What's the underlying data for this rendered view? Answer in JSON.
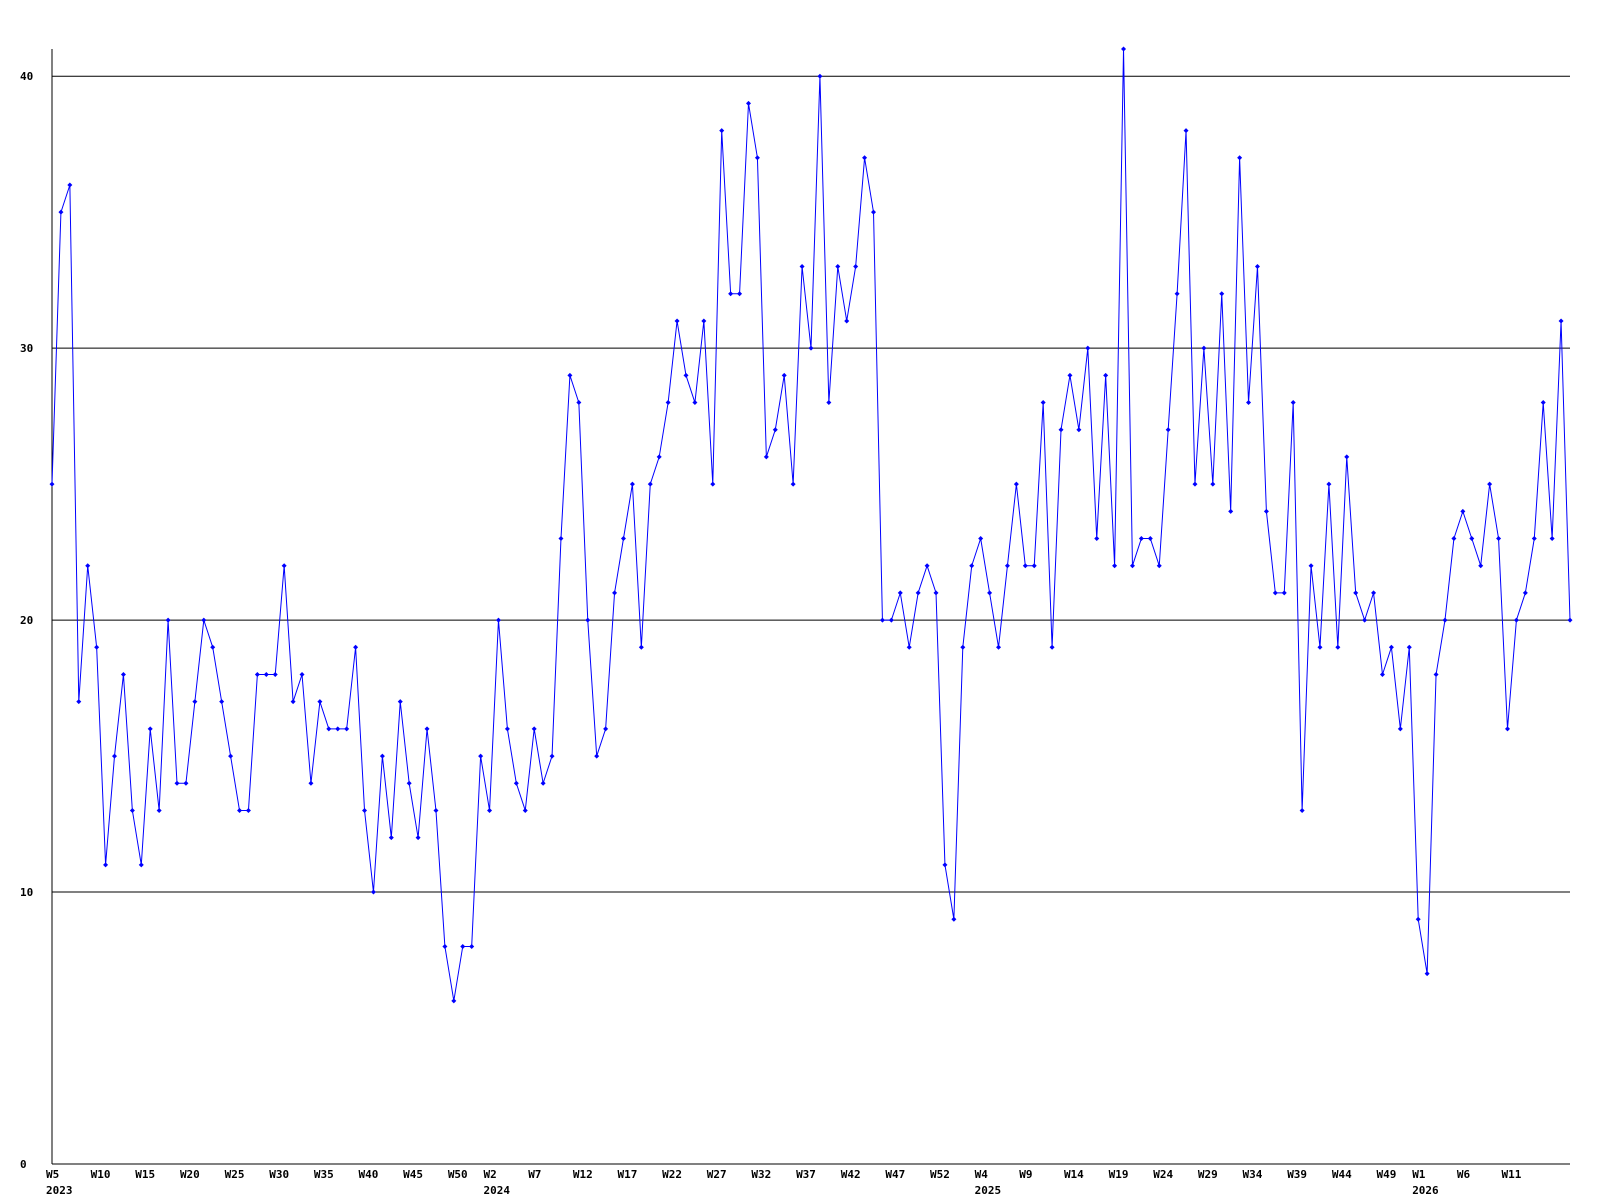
{
  "chart_data": {
    "type": "line",
    "title": "",
    "xlabel": "",
    "ylabel": "",
    "ylim": [
      0,
      41
    ],
    "yticks": [
      0,
      10,
      20,
      30,
      40
    ],
    "grid": true,
    "colors": {
      "line": "#0000ff",
      "grid": "#000000",
      "axis": "#000000"
    },
    "x_tick_labels": [
      {
        "index": 0,
        "week": "W5",
        "year": "2023"
      },
      {
        "index": 5,
        "week": "W10"
      },
      {
        "index": 10,
        "week": "W15"
      },
      {
        "index": 15,
        "week": "W20"
      },
      {
        "index": 20,
        "week": "W25"
      },
      {
        "index": 25,
        "week": "W30"
      },
      {
        "index": 30,
        "week": "W35"
      },
      {
        "index": 35,
        "week": "W40"
      },
      {
        "index": 40,
        "week": "W45"
      },
      {
        "index": 45,
        "week": "W50"
      },
      {
        "index": 49,
        "week": "W2",
        "year": "2024"
      },
      {
        "index": 54,
        "week": "W7"
      },
      {
        "index": 59,
        "week": "W12"
      },
      {
        "index": 64,
        "week": "W17"
      },
      {
        "index": 69,
        "week": "W22"
      },
      {
        "index": 74,
        "week": "W27"
      },
      {
        "index": 79,
        "week": "W32"
      },
      {
        "index": 84,
        "week": "W37"
      },
      {
        "index": 89,
        "week": "W42"
      },
      {
        "index": 94,
        "week": "W47"
      },
      {
        "index": 99,
        "week": "W52"
      },
      {
        "index": 104,
        "week": "W4",
        "year": "2025"
      },
      {
        "index": 109,
        "week": "W9"
      },
      {
        "index": 114,
        "week": "W14"
      },
      {
        "index": 119,
        "week": "W19"
      },
      {
        "index": 124,
        "week": "W24"
      },
      {
        "index": 129,
        "week": "W29"
      },
      {
        "index": 134,
        "week": "W34"
      },
      {
        "index": 139,
        "week": "W39"
      },
      {
        "index": 144,
        "week": "W44"
      },
      {
        "index": 149,
        "week": "W49"
      },
      {
        "index": 153,
        "week": "W1",
        "year": "2026"
      },
      {
        "index": 158,
        "week": "W6"
      },
      {
        "index": 163,
        "week": "W11"
      }
    ],
    "series": [
      {
        "values": [
          25,
          35,
          36,
          17,
          22,
          19,
          11,
          15,
          18,
          13,
          11,
          16,
          13,
          20,
          14,
          14,
          17,
          20,
          19,
          17,
          15,
          13,
          13,
          18,
          18,
          18,
          22,
          17,
          18,
          14,
          17,
          16,
          16,
          16,
          19,
          13,
          10,
          15,
          12,
          17,
          14,
          12,
          16,
          13,
          8,
          6,
          8,
          8,
          15,
          13,
          20,
          16,
          14,
          13,
          16,
          14,
          15,
          23,
          29,
          28,
          20,
          15,
          16,
          21,
          23,
          25,
          19,
          25,
          26,
          28,
          31,
          29,
          28,
          31,
          25,
          38,
          32,
          32,
          39,
          37,
          26,
          27,
          29,
          25,
          33,
          30,
          40,
          28,
          33,
          31,
          33,
          37,
          35,
          20,
          20,
          21,
          19,
          21,
          22,
          21,
          11,
          9,
          19,
          22,
          23,
          21,
          19,
          22,
          25,
          22,
          22,
          28,
          19,
          27,
          29,
          27,
          30,
          23,
          29,
          22,
          41,
          22,
          23,
          23,
          22,
          27,
          32,
          38,
          25,
          30,
          25,
          32,
          24,
          37,
          28,
          33,
          24,
          21,
          21,
          28,
          13,
          22,
          19,
          25,
          19,
          26,
          21,
          20,
          21,
          18,
          19,
          16,
          19,
          9,
          7,
          18,
          20,
          23,
          24,
          23,
          22,
          25,
          23,
          16,
          20,
          21,
          23,
          28,
          23,
          31,
          20
        ]
      }
    ]
  }
}
